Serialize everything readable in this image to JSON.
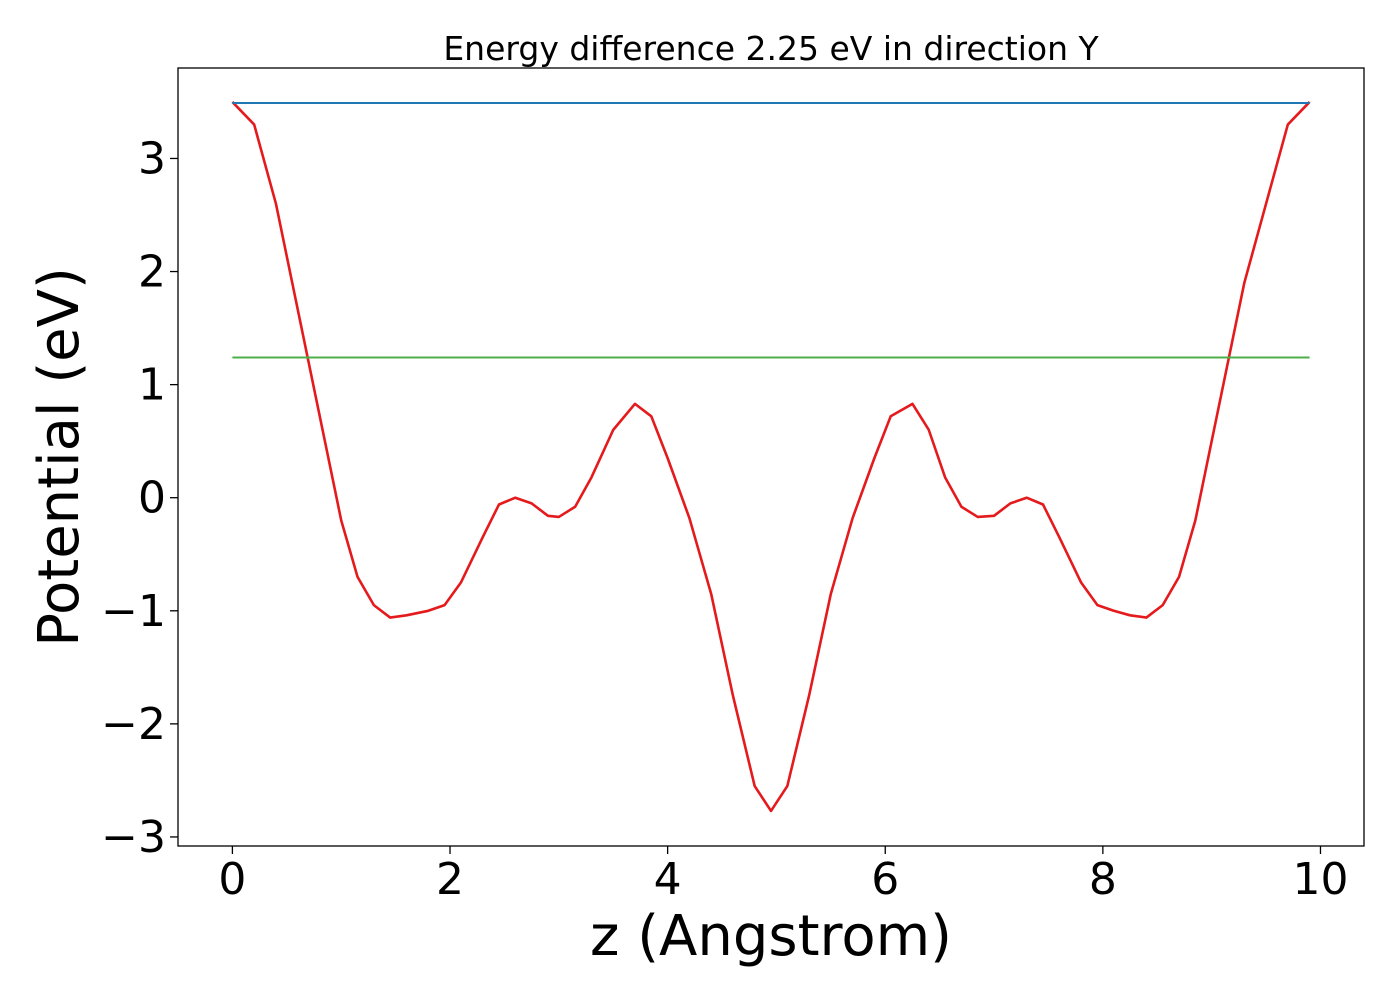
{
  "chart_data": {
    "type": "line",
    "title": "Energy difference 2.25 eV in direction Y",
    "xlabel": "z (Angstrom)",
    "ylabel": "Potential (eV)",
    "xlim": [
      -0.5,
      10.4
    ],
    "ylim": [
      -3.08,
      3.8
    ],
    "xticks": [
      0,
      2,
      4,
      6,
      8,
      10
    ],
    "xtick_labels": [
      "0",
      "2",
      "4",
      "6",
      "8",
      "10"
    ],
    "yticks": [
      -3,
      -2,
      -1,
      0,
      1,
      2,
      3
    ],
    "ytick_labels": [
      "−3",
      "−2",
      "−1",
      "0",
      "1",
      "2",
      "3"
    ],
    "grid": false,
    "colors": {
      "potential": "#e41a1c",
      "vacuum": "#1f77b4",
      "fermi": "#4daf4a"
    },
    "series": [
      {
        "key": "potential",
        "x": [
          0.0,
          0.2,
          0.4,
          0.55,
          0.7,
          0.85,
          1.0,
          1.15,
          1.3,
          1.45,
          1.6,
          1.8,
          1.95,
          2.1,
          2.3,
          2.45,
          2.6,
          2.75,
          2.9,
          3.0,
          3.15,
          3.3,
          3.5,
          3.7,
          3.85,
          4.0,
          4.2,
          4.4,
          4.6,
          4.8,
          4.95,
          5.1,
          5.3,
          5.5,
          5.7,
          5.9,
          6.05,
          6.25,
          6.4,
          6.55,
          6.7,
          6.85,
          7.0,
          7.15,
          7.3,
          7.45,
          7.6,
          7.8,
          7.95,
          8.1,
          8.25,
          8.4,
          8.55,
          8.7,
          8.85,
          9.0,
          9.15,
          9.3,
          9.5,
          9.7,
          9.9
        ],
        "y": [
          3.5,
          3.3,
          2.6,
          1.9,
          1.2,
          0.5,
          -0.2,
          -0.7,
          -0.95,
          -1.06,
          -1.04,
          -1.0,
          -0.95,
          -0.75,
          -0.35,
          -0.06,
          0.0,
          -0.05,
          -0.16,
          -0.17,
          -0.08,
          0.18,
          0.6,
          0.83,
          0.72,
          0.35,
          -0.18,
          -0.85,
          -1.75,
          -2.55,
          -2.77,
          -2.55,
          -1.75,
          -0.85,
          -0.18,
          0.35,
          0.72,
          0.83,
          0.6,
          0.18,
          -0.08,
          -0.17,
          -0.16,
          -0.05,
          0.0,
          -0.06,
          -0.35,
          -0.75,
          -0.95,
          -1.0,
          -1.04,
          -1.06,
          -0.95,
          -0.7,
          -0.2,
          0.5,
          1.2,
          1.9,
          2.6,
          3.3,
          3.5
        ]
      },
      {
        "key": "vacuum",
        "x": [
          0.0,
          9.9
        ],
        "y": [
          3.49,
          3.49
        ]
      },
      {
        "key": "fermi",
        "x": [
          0.0,
          9.9
        ],
        "y": [
          1.24,
          1.24
        ]
      }
    ]
  }
}
